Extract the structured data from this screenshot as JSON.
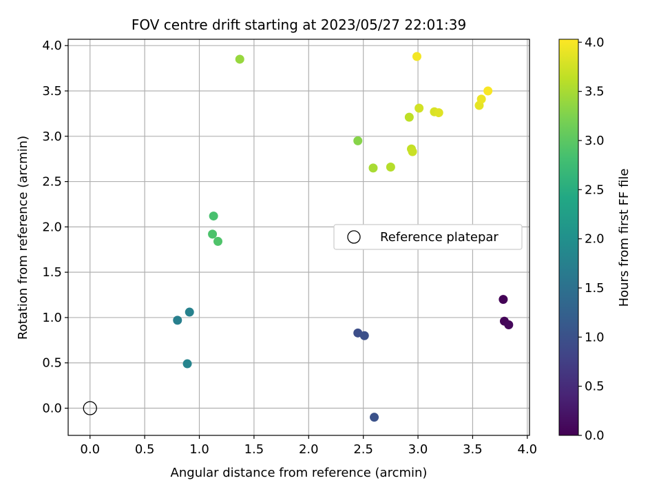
{
  "chart_data": {
    "type": "scatter",
    "title": "FOV centre drift starting at 2023/05/27 22:01:39",
    "xlabel": "Angular distance from reference (arcmin)",
    "ylabel": "Rotation from reference (arcmin)",
    "xlim": [
      -0.2,
      4.02
    ],
    "ylim": [
      -0.3,
      4.07
    ],
    "xticks": [
      "0.0",
      "0.5",
      "1.0",
      "1.5",
      "2.0",
      "2.5",
      "3.0",
      "3.5",
      "4.0"
    ],
    "yticks": [
      "0.0",
      "0.5",
      "1.0",
      "1.5",
      "2.0",
      "2.5",
      "3.0",
      "3.5",
      "4.0"
    ],
    "grid": true,
    "legend": {
      "position": "center-right",
      "entries": [
        "Reference platepar"
      ]
    },
    "reference_point": {
      "x": 0.0,
      "y": 0.0
    },
    "colorbar": {
      "label": "Hours from first FF file",
      "range": [
        0.0,
        4.03
      ],
      "ticks": [
        "0.0",
        "0.5",
        "1.0",
        "1.5",
        "2.0",
        "2.5",
        "3.0",
        "3.5",
        "4.0"
      ],
      "colormap": "viridis"
    },
    "points": [
      {
        "x": 3.78,
        "y": 1.2,
        "c": 0.02
      },
      {
        "x": 3.79,
        "y": 0.96,
        "c": 0.05
      },
      {
        "x": 3.83,
        "y": 0.92,
        "c": 0.08
      },
      {
        "x": 2.45,
        "y": 0.83,
        "c": 0.95
      },
      {
        "x": 2.51,
        "y": 0.8,
        "c": 0.98
      },
      {
        "x": 2.6,
        "y": -0.1,
        "c": 1.02
      },
      {
        "x": 0.8,
        "y": 0.97,
        "c": 1.72
      },
      {
        "x": 0.91,
        "y": 1.06,
        "c": 1.75
      },
      {
        "x": 0.89,
        "y": 0.49,
        "c": 1.8
      },
      {
        "x": 1.13,
        "y": 2.12,
        "c": 2.85
      },
      {
        "x": 1.12,
        "y": 1.92,
        "c": 2.88
      },
      {
        "x": 1.17,
        "y": 1.84,
        "c": 2.9
      },
      {
        "x": 2.45,
        "y": 2.95,
        "c": 3.3
      },
      {
        "x": 1.37,
        "y": 3.85,
        "c": 3.4
      },
      {
        "x": 2.59,
        "y": 2.65,
        "c": 3.5
      },
      {
        "x": 2.75,
        "y": 2.66,
        "c": 3.58
      },
      {
        "x": 2.92,
        "y": 3.21,
        "c": 3.63
      },
      {
        "x": 2.94,
        "y": 2.86,
        "c": 3.66
      },
      {
        "x": 2.95,
        "y": 2.83,
        "c": 3.7
      },
      {
        "x": 3.01,
        "y": 3.31,
        "c": 3.75
      },
      {
        "x": 3.15,
        "y": 3.27,
        "c": 3.8
      },
      {
        "x": 3.19,
        "y": 3.26,
        "c": 3.84
      },
      {
        "x": 3.56,
        "y": 3.34,
        "c": 3.88
      },
      {
        "x": 3.58,
        "y": 3.41,
        "c": 3.92
      },
      {
        "x": 2.99,
        "y": 3.88,
        "c": 3.97
      },
      {
        "x": 3.64,
        "y": 3.5,
        "c": 4.0
      }
    ]
  }
}
